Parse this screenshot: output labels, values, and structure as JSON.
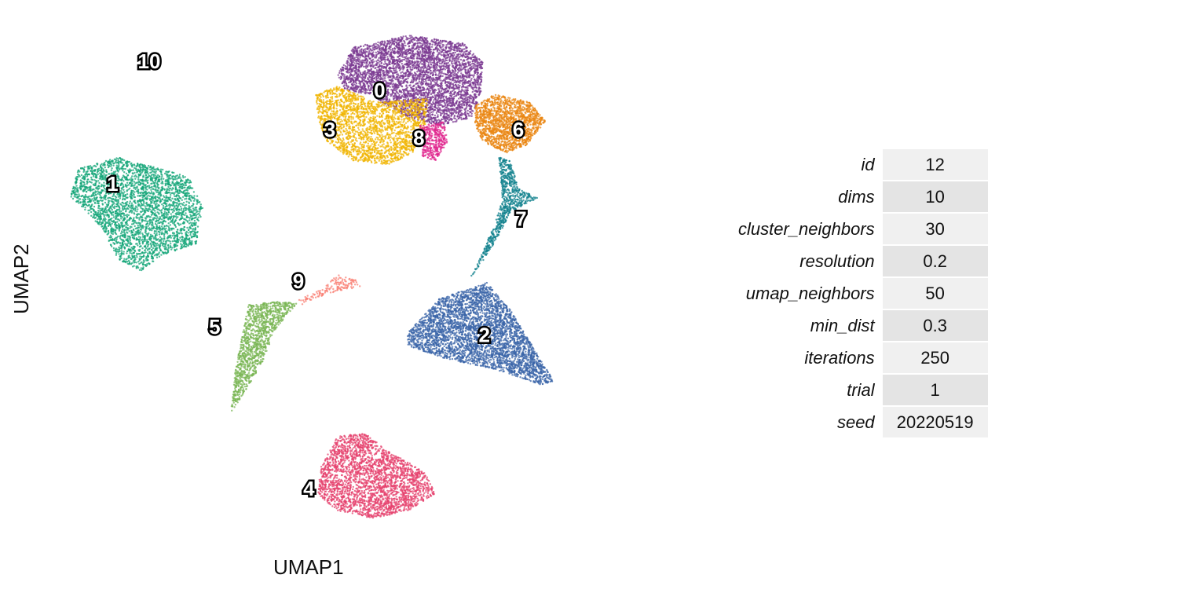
{
  "chart_data": {
    "type": "scatter",
    "xlabel": "UMAP1",
    "ylabel": "UMAP2",
    "grid": false,
    "legend": "none",
    "clusters": [
      {
        "label": "0",
        "color": "#7b3a92",
        "x": 5.2,
        "y": 8.2,
        "n": 4200
      },
      {
        "label": "1",
        "color": "#14a678",
        "x": -5.0,
        "y": 3.7,
        "n": 3200
      },
      {
        "label": "2",
        "color": "#3a64a8",
        "x": 9.2,
        "y": -3.6,
        "n": 3600
      },
      {
        "label": "3",
        "color": "#f0b400",
        "x": 3.3,
        "y": 6.3,
        "n": 2200
      },
      {
        "label": "4",
        "color": "#e5426e",
        "x": 2.5,
        "y": -11.0,
        "n": 2600
      },
      {
        "label": "5",
        "color": "#7ab654",
        "x": -1.1,
        "y": -3.2,
        "n": 1200
      },
      {
        "label": "6",
        "color": "#ea8512",
        "x": 10.5,
        "y": 6.3,
        "n": 1500
      },
      {
        "label": "7",
        "color": "#12828e",
        "x": 10.6,
        "y": 2.0,
        "n": 700
      },
      {
        "label": "8",
        "color": "#e0288f",
        "x": 6.7,
        "y": 5.9,
        "n": 400
      },
      {
        "label": "9",
        "color": "#fa7f73",
        "x": 2.1,
        "y": -1.0,
        "n": 150
      },
      {
        "label": "10",
        "color": "#888888",
        "x": -3.6,
        "y": 9.6,
        "n": 0
      }
    ]
  },
  "params": [
    {
      "name": "id",
      "value": "12"
    },
    {
      "name": "dims",
      "value": "10"
    },
    {
      "name": "cluster_neighbors",
      "value": "30"
    },
    {
      "name": "resolution",
      "value": "0.2"
    },
    {
      "name": "umap_neighbors",
      "value": "50"
    },
    {
      "name": "min_dist",
      "value": "0.3"
    },
    {
      "name": "iterations",
      "value": "250"
    },
    {
      "name": "trial",
      "value": "1"
    },
    {
      "name": "seed",
      "value": "20220519"
    }
  ]
}
